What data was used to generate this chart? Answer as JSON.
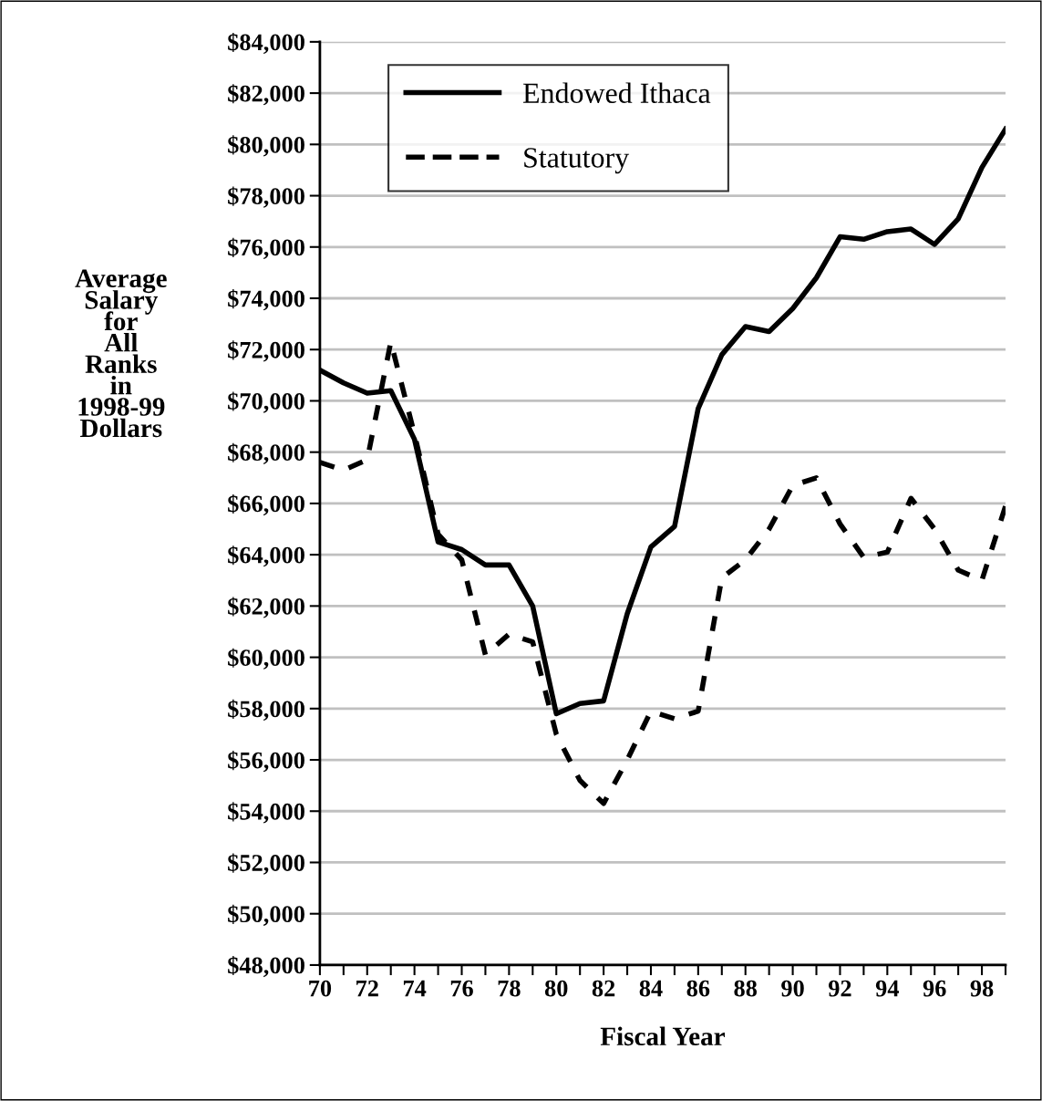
{
  "chart_data": {
    "type": "line",
    "xlabel": "Fiscal Year",
    "ylabel": "Average\nSalary\nfor\nAll\nRanks\nin\n1998-99\nDollars",
    "x": [
      70,
      71,
      72,
      73,
      74,
      75,
      76,
      77,
      78,
      79,
      80,
      81,
      82,
      83,
      84,
      85,
      86,
      87,
      88,
      89,
      90,
      91,
      92,
      93,
      94,
      95,
      96,
      97,
      98,
      99
    ],
    "series": [
      {
        "name": "Endowed Ithaca",
        "color": "#000000",
        "line_style": "solid",
        "values": [
          71200,
          70700,
          70300,
          70400,
          68500,
          64500,
          64200,
          63600,
          63600,
          62000,
          57800,
          58200,
          58300,
          61700,
          64300,
          65100,
          69700,
          71800,
          72900,
          72700,
          73600,
          74800,
          76400,
          76300,
          76600,
          76700,
          76100,
          77100,
          79100,
          80600
        ]
      },
      {
        "name": "Statutory",
        "color": "#000000",
        "line_style": "dashed",
        "values": [
          67600,
          67300,
          67700,
          72300,
          68700,
          64800,
          63800,
          60100,
          60900,
          60600,
          57000,
          55200,
          54300,
          56000,
          57900,
          57600,
          57900,
          63100,
          63800,
          65000,
          66700,
          67000,
          65200,
          63900,
          64100,
          66200,
          65000,
          63400,
          63000,
          65900
        ]
      }
    ],
    "xlim": [
      70,
      99
    ],
    "ylim": [
      48000,
      84000
    ],
    "xticks": [
      70,
      {
        "value": 71,
        "label": null
      },
      72,
      {
        "value": 73,
        "label": null
      },
      74,
      {
        "value": 75,
        "label": null
      },
      76,
      {
        "value": 77,
        "label": null
      },
      78,
      {
        "value": 79,
        "label": null
      },
      80,
      {
        "value": 81,
        "label": null
      },
      82,
      {
        "value": 83,
        "label": null
      },
      84,
      {
        "value": 85,
        "label": null
      },
      86,
      {
        "value": 87,
        "label": null
      },
      88,
      {
        "value": 89,
        "label": null
      },
      90,
      {
        "value": 91,
        "label": null
      },
      92,
      {
        "value": 93,
        "label": null
      },
      94,
      {
        "value": 95,
        "label": null
      },
      96,
      {
        "value": 97,
        "label": null
      },
      98,
      {
        "value": 99,
        "label": null
      }
    ],
    "yticks": [
      {
        "value": 48000,
        "label": "$48,000"
      },
      {
        "value": 50000,
        "label": "$50,000"
      },
      {
        "value": 52000,
        "label": "$52,000"
      },
      {
        "value": 54000,
        "label": "$54,000"
      },
      {
        "value": 56000,
        "label": "$56,000"
      },
      {
        "value": 58000,
        "label": "$58,000"
      },
      {
        "value": 60000,
        "label": "$60,000"
      },
      {
        "value": 62000,
        "label": "$62,000"
      },
      {
        "value": 64000,
        "label": "$64,000"
      },
      {
        "value": 66000,
        "label": "$66,000"
      },
      {
        "value": 68000,
        "label": "$68,000"
      },
      {
        "value": 70000,
        "label": "$70,000"
      },
      {
        "value": 72000,
        "label": "$72,000"
      },
      {
        "value": 74000,
        "label": "$74,000"
      },
      {
        "value": 76000,
        "label": "$76,000"
      },
      {
        "value": 78000,
        "label": "$78,000"
      },
      {
        "value": 80000,
        "label": "$80,000"
      },
      {
        "value": 82000,
        "label": "$82,000"
      },
      {
        "value": 84000,
        "label": "$84,000"
      }
    ],
    "grid": "y",
    "legend": "top left",
    "marker": "none"
  }
}
